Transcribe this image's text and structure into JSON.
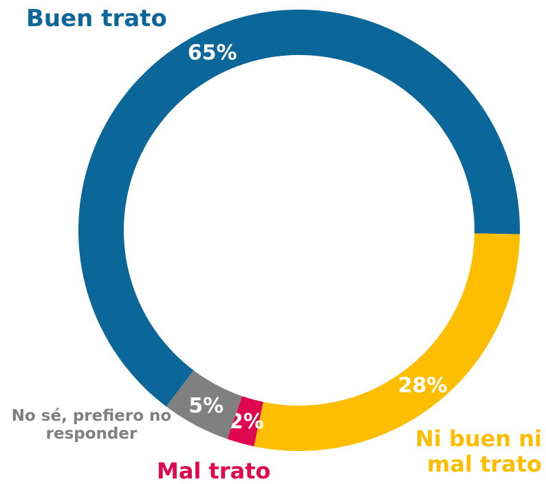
{
  "chart_data": {
    "type": "donut",
    "categories": [
      "Buen trato",
      "Ni buen ni mal trato",
      "Mal trato",
      "No sé, prefiero no responder"
    ],
    "values": [
      65,
      28,
      2,
      5
    ],
    "value_labels": [
      "65%",
      "28%",
      "2%",
      "5%"
    ],
    "colors": [
      "#0b6699",
      "#fdbd00",
      "#e0064f",
      "#808080"
    ]
  }
}
